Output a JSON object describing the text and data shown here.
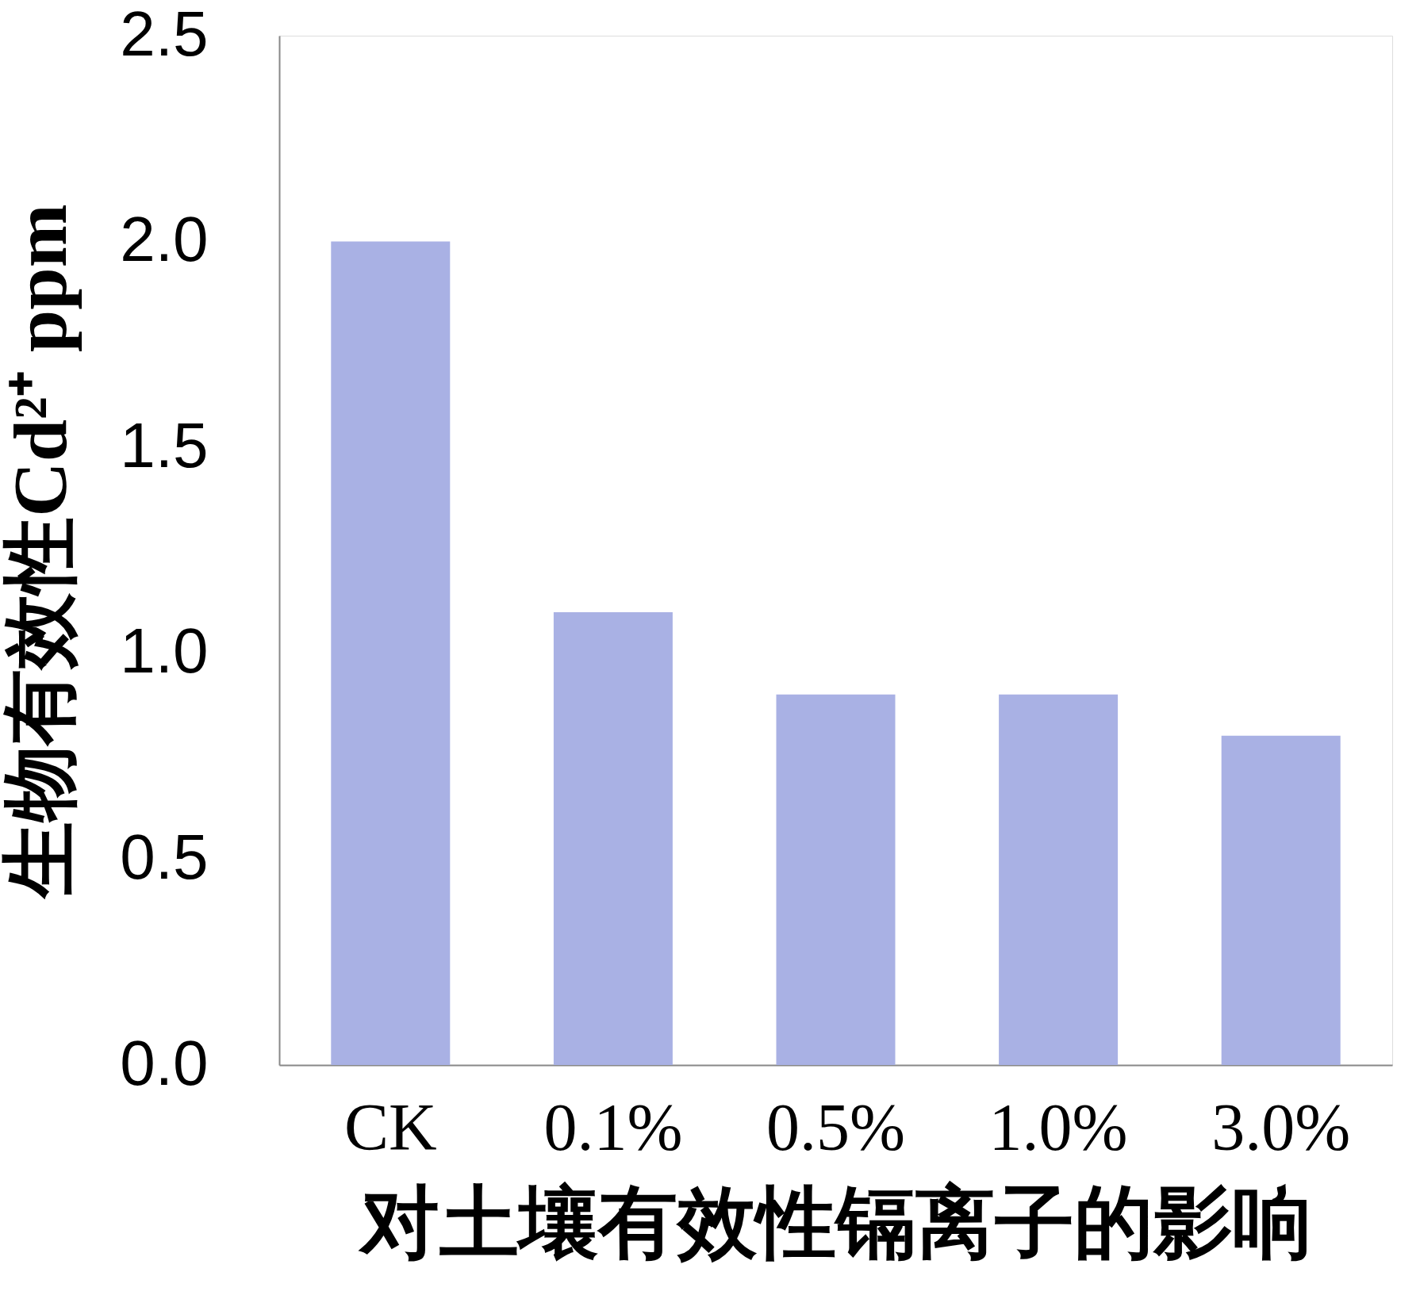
{
  "chart_data": {
    "type": "bar",
    "categories": [
      "CK",
      "0.1%",
      "0.5%",
      "1.0%",
      "3.0%"
    ],
    "values": [
      2.0,
      1.1,
      0.9,
      0.9,
      0.8
    ],
    "color": "#a9b1e4",
    "ylabel": "生物有效性Cd²⁺ ppm",
    "xlabel": "对土壤有效性镉离子的影响",
    "ylim": [
      0,
      2.5
    ],
    "yticks": [
      {
        "value": 0,
        "label": "0.0"
      },
      0.5,
      {
        "value": 1,
        "label": "1.0"
      },
      1.5,
      {
        "value": 2,
        "label": "2.0"
      },
      2.5
    ],
    "grid": false
  }
}
